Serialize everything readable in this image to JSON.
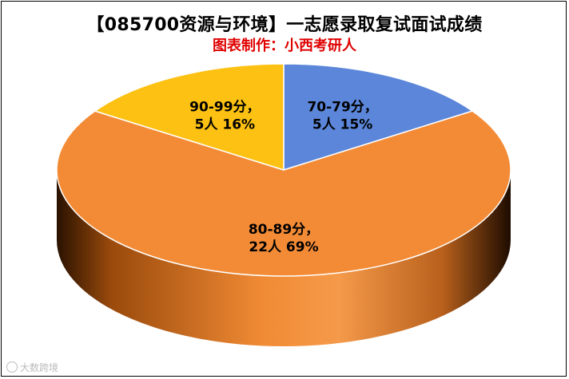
{
  "title": "【085700资源与环境】一志愿录取复试面试成绩",
  "subtitle": "图表制作：小西考研人",
  "watermark": "大数跨境",
  "chart_data": {
    "type": "pie",
    "title": "【085700资源与环境】一志愿录取复试面试成绩",
    "subtitle": "图表制作：小西考研人",
    "categories": [
      "70-79分",
      "80-89分",
      "90-99分"
    ],
    "values": [
      5,
      22,
      5
    ],
    "percents": [
      15,
      69,
      16
    ],
    "labels": [
      {
        "line1": "70-79分，",
        "line2": "5人 15%"
      },
      {
        "line1": "80-89分，",
        "line2": "22人 69%"
      },
      {
        "line1": "90-99分，",
        "line2": "5人 16%"
      }
    ],
    "colors": [
      "#5b86d9",
      "#f38b36",
      "#fcc112"
    ],
    "side_colors": [
      "#3b5fa8",
      "#b85c14",
      "#c48f00"
    ],
    "style": "3d-pie"
  }
}
